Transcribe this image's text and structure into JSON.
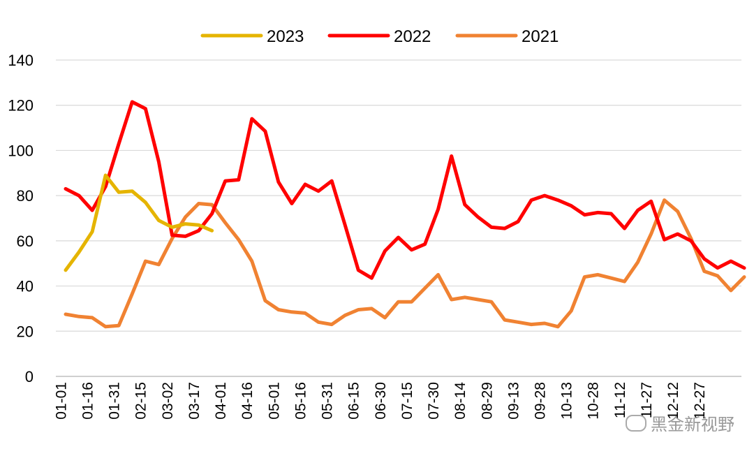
{
  "chart_data": {
    "type": "line",
    "title": "",
    "xlabel": "",
    "ylabel": "",
    "ylim": [
      0,
      140
    ],
    "y_ticks": [
      0,
      20,
      40,
      60,
      80,
      100,
      120,
      140
    ],
    "grid": "horizontal",
    "legend_position": "top",
    "x_tick_labels": [
      "01-01",
      "01-16",
      "01-31",
      "02-15",
      "03-02",
      "03-17",
      "04-01",
      "04-16",
      "05-01",
      "05-16",
      "05-31",
      "06-15",
      "06-30",
      "07-15",
      "07-30",
      "08-14",
      "08-29",
      "09-13",
      "09-28",
      "10-13",
      "10-28",
      "11-12",
      "11-27",
      "12-12",
      "12-27"
    ],
    "series": [
      {
        "name": "2023",
        "color": "#E5B400",
        "values": [
          47,
          55,
          64,
          89,
          81.5,
          82,
          77,
          69,
          66,
          67.5,
          67,
          64.5
        ]
      },
      {
        "name": "2022",
        "color": "#FF0000",
        "values": [
          83,
          80,
          73.5,
          84,
          103,
          121.5,
          118.5,
          95,
          62.5,
          62,
          64.5,
          72,
          86.5,
          87,
          114,
          108.5,
          86,
          76.5,
          85,
          82,
          86.5,
          67,
          47,
          43.5,
          55.5,
          61.5,
          56,
          58.5,
          74,
          97.5,
          76,
          70.5,
          66,
          65.5,
          68.5,
          78,
          80,
          78,
          75.5,
          71.5,
          72.5,
          72,
          65.5,
          73.5,
          77.5,
          60.5,
          63,
          60,
          52,
          48,
          51,
          48
        ]
      },
      {
        "name": "2021",
        "color": "#F08232",
        "values": [
          27.5,
          26.5,
          26,
          22,
          22.5,
          36.5,
          51,
          49.5,
          61,
          70.5,
          76.5,
          76,
          68,
          60.5,
          51,
          33.5,
          29.5,
          28.5,
          28,
          24,
          23,
          27,
          29.5,
          30,
          26,
          33,
          33,
          39,
          45,
          34,
          35,
          34,
          33,
          25,
          24,
          23,
          23.5,
          22,
          29,
          44,
          45,
          43.5,
          42,
          50.5,
          63,
          78,
          73,
          61,
          46.5,
          44.5,
          38,
          44
        ]
      }
    ]
  },
  "watermark": {
    "text": "黑金新视野",
    "icon": "wechat-icon"
  }
}
